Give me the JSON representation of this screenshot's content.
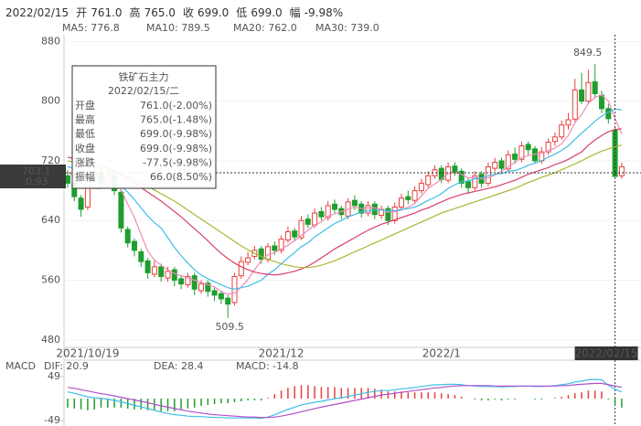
{
  "chart_data": {
    "type": "candlestick",
    "header": {
      "date": "2022/02/15",
      "items": [
        {
          "label": "开",
          "value": "761.0"
        },
        {
          "label": "高",
          "value": "765.0"
        },
        {
          "label": "收",
          "value": "699.0"
        },
        {
          "label": "低",
          "value": "699.0"
        },
        {
          "label": "幅",
          "value": "-9.98%"
        }
      ]
    },
    "legend": [
      "MA5: 776.8",
      "MA10: 789.5",
      "MA20: 762.0",
      "MA30: 739.0"
    ],
    "ylim": [
      470,
      889
    ],
    "yticks": [
      480,
      560,
      640,
      720,
      800,
      880
    ],
    "up_color": "#e8413c",
    "down_color": "#1e9e2e",
    "categories": [
      null,
      null,
      null,
      "2021/10/19",
      null,
      null,
      null,
      null,
      null,
      null,
      null,
      null,
      null,
      null,
      null,
      null,
      null,
      null,
      null,
      null,
      null,
      null,
      null,
      null,
      null,
      null,
      null,
      null,
      null,
      null,
      null,
      null,
      "2021/12",
      null,
      null,
      null,
      null,
      null,
      null,
      null,
      null,
      null,
      null,
      null,
      null,
      null,
      null,
      null,
      null,
      null,
      null,
      null,
      null,
      null,
      null,
      null,
      "2022/1",
      null,
      null,
      null,
      null,
      null,
      null,
      null,
      null,
      null,
      null,
      null,
      null,
      null,
      null,
      null,
      null,
      null,
      null,
      null,
      null,
      null,
      null,
      null,
      null,
      null,
      "2022/02/15",
      null
    ],
    "open": [
      700,
      690,
      670,
      658,
      694,
      704,
      688,
      700,
      678,
      628,
      612,
      598,
      586,
      568,
      578,
      563,
      574,
      562,
      554,
      566,
      546,
      556,
      546,
      542,
      536,
      530,
      566,
      584,
      592,
      602,
      588,
      606,
      600,
      614,
      626,
      617,
      642,
      634,
      652,
      644,
      662,
      656,
      646,
      667,
      662,
      650,
      662,
      647,
      656,
      640,
      658,
      672,
      667,
      680,
      688,
      700,
      710,
      694,
      713,
      706,
      692,
      684,
      702,
      690,
      710,
      720,
      709,
      729,
      722,
      742,
      736,
      720,
      732,
      746,
      752,
      768,
      776,
      815,
      800,
      826,
      808,
      790,
      761,
      700
    ],
    "high": [
      708,
      694,
      674,
      700,
      712,
      708,
      706,
      704,
      682,
      632,
      616,
      602,
      590,
      586,
      582,
      578,
      578,
      566,
      570,
      570,
      560,
      560,
      550,
      546,
      540,
      570,
      592,
      598,
      606,
      606,
      610,
      612,
      620,
      632,
      630,
      646,
      648,
      656,
      658,
      666,
      668,
      660,
      670,
      674,
      666,
      666,
      666,
      660,
      660,
      664,
      676,
      680,
      686,
      696,
      706,
      714,
      714,
      718,
      718,
      710,
      696,
      706,
      706,
      718,
      724,
      724,
      734,
      738,
      746,
      746,
      740,
      738,
      750,
      758,
      774,
      784,
      830,
      838,
      842,
      849.5,
      814,
      796,
      765,
      718
    ],
    "low": [
      684,
      666,
      645,
      654,
      690,
      684,
      684,
      674,
      624,
      604,
      592,
      578,
      562,
      564,
      558,
      558,
      552,
      548,
      550,
      540,
      542,
      538,
      532,
      528,
      509.5,
      526,
      562,
      580,
      588,
      582,
      584,
      594,
      596,
      610,
      612,
      614,
      630,
      630,
      640,
      640,
      650,
      642,
      642,
      654,
      644,
      646,
      642,
      642,
      634,
      636,
      654,
      662,
      664,
      676,
      684,
      696,
      690,
      690,
      700,
      684,
      676,
      680,
      684,
      686,
      706,
      704,
      706,
      716,
      718,
      728,
      716,
      716,
      728,
      740,
      748,
      762,
      772,
      796,
      796,
      804,
      784,
      770,
      699,
      696
    ],
    "close": [
      690,
      672,
      655,
      695,
      705,
      690,
      700,
      680,
      630,
      610,
      600,
      585,
      570,
      578,
      565,
      572,
      560,
      555,
      565,
      548,
      555,
      545,
      540,
      535,
      528,
      565,
      585,
      590,
      600,
      588,
      605,
      600,
      615,
      625,
      618,
      640,
      635,
      650,
      645,
      660,
      655,
      648,
      665,
      660,
      650,
      660,
      648,
      655,
      640,
      658,
      670,
      668,
      680,
      690,
      700,
      708,
      695,
      712,
      705,
      690,
      684,
      700,
      690,
      712,
      718,
      710,
      728,
      722,
      740,
      735,
      720,
      732,
      745,
      752,
      768,
      775,
      815,
      800,
      825,
      810,
      790,
      776.5,
      699,
      712
    ],
    "series": [
      {
        "name": "MA5",
        "color": "#f08cb6",
        "values": [
          705,
          700,
          690,
          685,
          683,
          683,
          689,
          694,
          681,
          662,
          644,
          621,
          599,
          587,
          580,
          574,
          569,
          566,
          563,
          560,
          557,
          554,
          551,
          545,
          541,
          543,
          551,
          561,
          574,
          586,
          594,
          597,
          602,
          607,
          613,
          620,
          627,
          634,
          638,
          646,
          649,
          652,
          655,
          658,
          656,
          657,
          657,
          655,
          651,
          652,
          654,
          658,
          663,
          673,
          683,
          689,
          695,
          703,
          704,
          702,
          697,
          698,
          696,
          697,
          701,
          706,
          712,
          718,
          724,
          727,
          729,
          730,
          734,
          737,
          743,
          754,
          771,
          782,
          797,
          805,
          808,
          800,
          776.8,
          756
        ]
      },
      {
        "name": "MA10",
        "color": "#3fbde6",
        "values": [
          712,
          710,
          706,
          702,
          698,
          694,
          692,
          690,
          686,
          678,
          668,
          657,
          646,
          637,
          630,
          617,
          604,
          593,
          583,
          574,
          567,
          562,
          558,
          554,
          550,
          548,
          550,
          552,
          556,
          560,
          568,
          574,
          582,
          590,
          597,
          605,
          610,
          618,
          624,
          630,
          636,
          640,
          645,
          648,
          652,
          653,
          654,
          654,
          653,
          653,
          655,
          656,
          658,
          662,
          667,
          671,
          676,
          683,
          688,
          692,
          693,
          696,
          697,
          700,
          702,
          703,
          706,
          707,
          710,
          714,
          717,
          720,
          725,
          729,
          734,
          740,
          749,
          757,
          765,
          773,
          780,
          785,
          789.5,
          788
        ]
      },
      {
        "name": "MA20",
        "color": "#d8406c",
        "values": [
          725,
          723,
          720,
          718,
          716,
          713,
          710,
          706,
          701,
          696,
          690,
          684,
          678,
          672,
          666,
          659,
          652,
          645,
          637,
          629,
          621,
          613,
          604,
          596,
          589,
          583,
          578,
          574,
          571,
          569,
          568,
          567,
          568,
          570,
          572,
          575,
          579,
          584,
          590,
          596,
          602,
          607,
          612,
          617,
          622,
          627,
          631,
          635,
          638,
          641,
          644,
          647,
          650,
          654,
          657,
          661,
          665,
          669,
          672,
          675,
          677,
          679,
          681,
          683,
          685,
          688,
          691,
          694,
          698,
          702,
          705,
          708,
          711,
          715,
          718,
          722,
          727,
          732,
          741,
          748,
          754,
          759,
          762.0,
          763
        ]
      },
      {
        "name": "MA30",
        "color": "#a9b733",
        "values": [
          720,
          718,
          716,
          714,
          712,
          710,
          708,
          705,
          702,
          699,
          695,
          691,
          686,
          681,
          676,
          671,
          666,
          660,
          654,
          648,
          642,
          636,
          630,
          624,
          618,
          612,
          606,
          601,
          596,
          592,
          588,
          585,
          582,
          580,
          578,
          577,
          577,
          578,
          580,
          583,
          586,
          590,
          594,
          598,
          602,
          606,
          610,
          614,
          618,
          622,
          626,
          630,
          634,
          638,
          642,
          646,
          650,
          653,
          656,
          659,
          662,
          665,
          668,
          671,
          674,
          677,
          680,
          683,
          687,
          691,
          694,
          698,
          701,
          704,
          708,
          712,
          716,
          720,
          725,
          729,
          733,
          736,
          739.0,
          741
        ]
      }
    ],
    "tooltip": {
      "title": "铁矿石主力",
      "date": "2022/02/15/二",
      "rows": [
        {
          "label": "开盘",
          "value": "761.0(-2.00%)"
        },
        {
          "label": "最高",
          "value": "765.0(-1.48%)"
        },
        {
          "label": "最低",
          "value": "699.0(-9.98%)"
        },
        {
          "label": "收盘",
          "value": "699.0(-9.98%)"
        },
        {
          "label": "涨跌",
          "value": "-77.5(-9.98%)"
        },
        {
          "label": "振幅",
          "value": "66.0(8.50%)"
        }
      ]
    },
    "crosshair": {
      "price": "703.1",
      "change": "-0.93"
    },
    "macd": {
      "title": "MACD",
      "legend": [
        "DIF: 20.9",
        "DEA: 28.4",
        "MACD: -14.8"
      ],
      "ylim": [
        -61,
        73.5
      ],
      "yticks": [
        49,
        -49
      ],
      "dif": {
        "name": "DIF",
        "color": "#3fbde6",
        "values": [
          15,
          12,
          8,
          4,
          2,
          1,
          -1,
          -4,
          -7,
          -11,
          -15,
          -18,
          -22,
          -26,
          -30,
          -33,
          -36,
          -37,
          -39,
          -40,
          -40,
          -41,
          -42,
          -42,
          -43,
          -43,
          -43,
          -43,
          -43,
          -44,
          -41,
          -36,
          -30,
          -24,
          -19,
          -14,
          -11,
          -8,
          -6,
          -3,
          0,
          2,
          5,
          8,
          11,
          14,
          16,
          18,
          18,
          20,
          22,
          23,
          25,
          27,
          29,
          31,
          31,
          32,
          32,
          31,
          29,
          28,
          27,
          27,
          27,
          26,
          27,
          27,
          28,
          28,
          27,
          27,
          28,
          29,
          31,
          33,
          37,
          39,
          42,
          43,
          42,
          30,
          20.9,
          15
        ]
      },
      "dea": {
        "name": "DEA",
        "color": "#b04fc9",
        "values": [
          25,
          23,
          20,
          17,
          14,
          11,
          9,
          6,
          3,
          0,
          -3,
          -6,
          -9,
          -13,
          -16,
          -19,
          -22,
          -25,
          -28,
          -30,
          -32,
          -34,
          -36,
          -37,
          -38,
          -39,
          -40,
          -41,
          -41,
          -42,
          -42,
          -41,
          -39,
          -36,
          -33,
          -29,
          -26,
          -22,
          -19,
          -16,
          -13,
          -10,
          -7,
          -4,
          -1,
          2,
          5,
          8,
          10,
          12,
          14,
          16,
          18,
          20,
          22,
          24,
          25,
          27,
          28,
          29,
          29,
          29,
          29,
          29,
          28,
          28,
          28,
          28,
          28,
          28,
          28,
          28,
          28,
          28,
          29,
          29,
          31,
          32,
          33,
          34,
          34,
          31,
          28.4,
          25
        ]
      },
      "hist": {
        "name": "MACD",
        "values": [
          -20,
          -22,
          -24,
          -26,
          -24,
          -20,
          -20,
          -20,
          -20,
          -22,
          -24,
          -24,
          -26,
          -26,
          -28,
          -28,
          -28,
          -24,
          -22,
          -20,
          -16,
          -14,
          -12,
          -10,
          -10,
          -8,
          -6,
          -4,
          -4,
          -4,
          2,
          10,
          18,
          24,
          28,
          30,
          30,
          28,
          26,
          26,
          26,
          24,
          24,
          24,
          24,
          24,
          22,
          20,
          16,
          16,
          16,
          14,
          14,
          14,
          14,
          14,
          12,
          10,
          8,
          4,
          0,
          -2,
          -4,
          -4,
          -2,
          -4,
          -2,
          -2,
          0,
          0,
          -2,
          -2,
          0,
          2,
          4,
          8,
          12,
          14,
          18,
          18,
          16,
          -2,
          -14.8,
          -20
        ]
      }
    }
  }
}
